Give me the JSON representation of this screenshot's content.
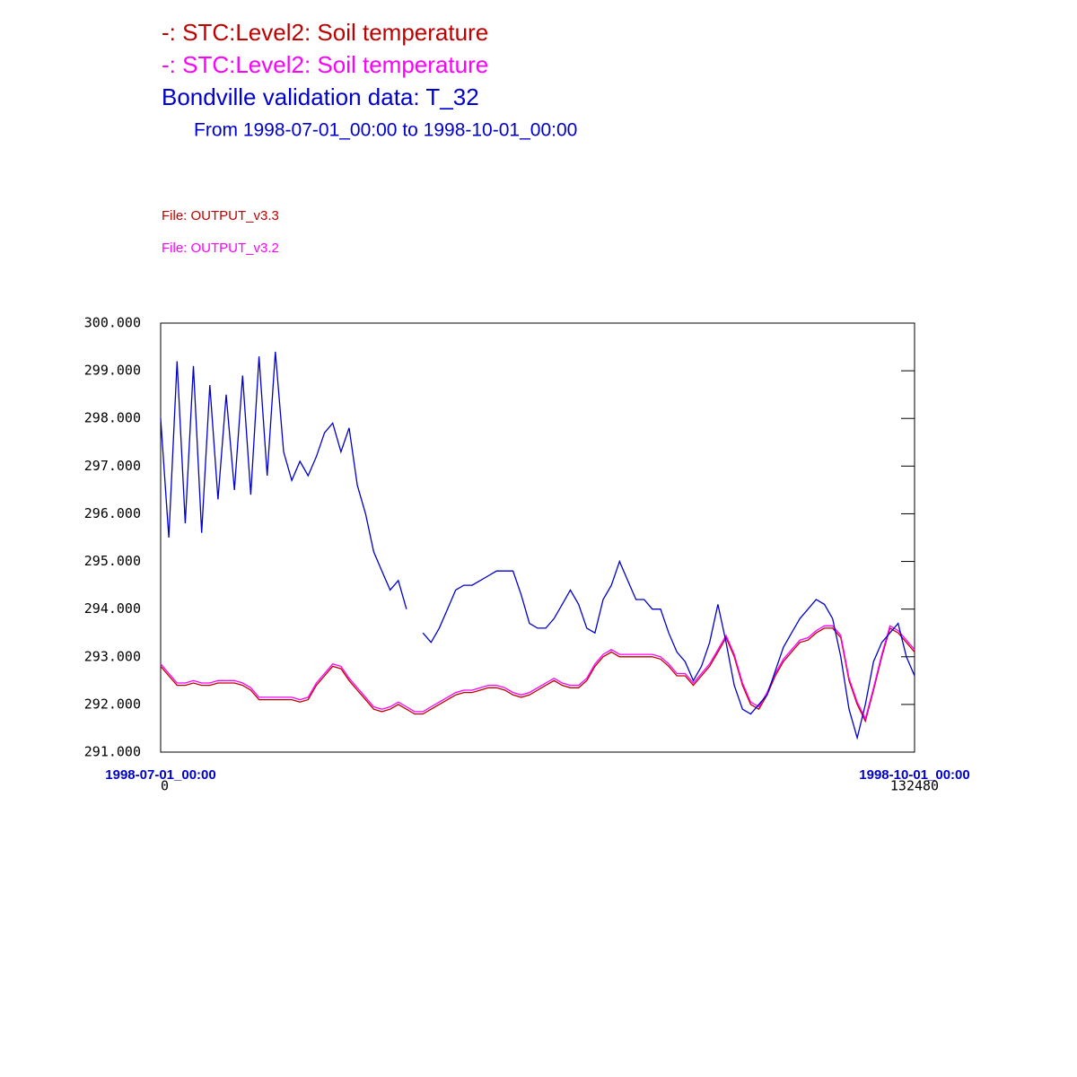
{
  "chart_data": {
    "type": "line",
    "subtitle": "From 1998-07-01_00:00 to 1998-10-01_00:00",
    "x_start_label": "1998-07-01_00:00",
    "x_end_label": "1998-10-01_00:00",
    "xlim": [
      0,
      132480
    ],
    "xticks": [
      0,
      132480
    ],
    "ylim": [
      291,
      300
    ],
    "yticks": [
      {
        "value": 291,
        "label": "291.000"
      },
      {
        "value": 292,
        "label": "292.000"
      },
      {
        "value": 293,
        "label": "293.000"
      },
      {
        "value": 294,
        "label": "294.000"
      },
      {
        "value": 295,
        "label": "295.000"
      },
      {
        "value": 296,
        "label": "296.000"
      },
      {
        "value": 297,
        "label": "297.000"
      },
      {
        "value": 298,
        "label": "298.000"
      },
      {
        "value": 299,
        "label": "299.000"
      },
      {
        "value": 300,
        "label": "300.000"
      }
    ],
    "x": [
      0,
      1440,
      2880,
      4320,
      5760,
      7200,
      8640,
      10080,
      11520,
      12960,
      14400,
      15840,
      17280,
      18720,
      20160,
      21600,
      23040,
      24480,
      25920,
      27360,
      28800,
      30240,
      31680,
      33120,
      34560,
      36000,
      37440,
      38880,
      40320,
      41760,
      43200,
      44640,
      46080,
      47520,
      48960,
      50400,
      51840,
      53280,
      54720,
      56160,
      57600,
      59040,
      60480,
      61920,
      63360,
      64800,
      66240,
      67680,
      69120,
      70560,
      72000,
      73440,
      74880,
      76320,
      77760,
      79200,
      80640,
      82080,
      83520,
      84960,
      86400,
      87840,
      89280,
      90720,
      92160,
      93600,
      95040,
      96480,
      97920,
      99360,
      100800,
      102240,
      103680,
      105120,
      106560,
      108000,
      109440,
      110880,
      112320,
      113760,
      115200,
      116640,
      118080,
      119520,
      120960,
      122400,
      123840,
      125280,
      126720,
      128160,
      129600,
      131040,
      132480
    ],
    "series": [
      {
        "name": "File: OUTPUT_v3.3",
        "label": "-:  STC:Level2: Soil temperature",
        "color": "#c00000",
        "values": [
          292.8,
          292.6,
          292.4,
          292.4,
          292.45,
          292.4,
          292.4,
          292.45,
          292.45,
          292.45,
          292.4,
          292.3,
          292.1,
          292.1,
          292.1,
          292.1,
          292.1,
          292.05,
          292.1,
          292.4,
          292.6,
          292.8,
          292.75,
          292.5,
          292.3,
          292.1,
          291.9,
          291.85,
          291.9,
          292.0,
          291.9,
          291.8,
          291.8,
          291.9,
          292.0,
          292.1,
          292.2,
          292.25,
          292.25,
          292.3,
          292.35,
          292.35,
          292.3,
          292.2,
          292.15,
          292.2,
          292.3,
          292.4,
          292.5,
          292.4,
          292.35,
          292.35,
          292.5,
          292.8,
          293.0,
          293.1,
          293.0,
          293.0,
          293.0,
          293.0,
          293.0,
          292.95,
          292.8,
          292.6,
          292.6,
          292.4,
          292.6,
          292.8,
          293.1,
          293.4,
          293.0,
          292.4,
          292.0,
          291.9,
          292.2,
          292.6,
          292.9,
          293.1,
          293.3,
          293.35,
          293.5,
          293.6,
          293.6,
          293.4,
          292.5,
          292.0,
          291.65,
          292.3,
          293.0,
          293.6,
          293.5,
          293.3,
          293.1
        ]
      },
      {
        "name": "File: OUTPUT_v3.2",
        "label": "-:  STC:Level2: Soil temperature",
        "color": "#ff00ff",
        "values": [
          292.85,
          292.65,
          292.45,
          292.45,
          292.5,
          292.45,
          292.45,
          292.5,
          292.5,
          292.5,
          292.45,
          292.35,
          292.15,
          292.15,
          292.15,
          292.15,
          292.15,
          292.1,
          292.15,
          292.45,
          292.65,
          292.85,
          292.8,
          292.55,
          292.35,
          292.15,
          291.95,
          291.9,
          291.95,
          292.05,
          291.95,
          291.85,
          291.85,
          291.95,
          292.05,
          292.15,
          292.25,
          292.3,
          292.3,
          292.35,
          292.4,
          292.4,
          292.35,
          292.25,
          292.2,
          292.25,
          292.35,
          292.45,
          292.55,
          292.45,
          292.4,
          292.4,
          292.55,
          292.85,
          293.05,
          293.15,
          293.05,
          293.05,
          293.05,
          293.05,
          293.05,
          293.0,
          292.85,
          292.65,
          292.65,
          292.45,
          292.65,
          292.85,
          293.15,
          293.45,
          293.05,
          292.45,
          292.05,
          291.95,
          292.25,
          292.65,
          292.95,
          293.15,
          293.35,
          293.4,
          293.55,
          293.65,
          293.65,
          293.45,
          292.55,
          292.05,
          291.7,
          292.35,
          293.05,
          293.65,
          293.55,
          293.35,
          293.15
        ]
      },
      {
        "name": "Bondville validation data:  T_32",
        "color": "#0000cc",
        "values": [
          298.0,
          295.5,
          299.2,
          295.8,
          299.1,
          295.6,
          298.7,
          296.3,
          298.5,
          296.5,
          298.9,
          296.4,
          299.3,
          296.8,
          299.4,
          297.3,
          296.7,
          297.1,
          296.8,
          297.2,
          297.7,
          297.9,
          297.3,
          297.8,
          296.6,
          296.0,
          295.2,
          294.8,
          294.4,
          294.6,
          294.0,
          null,
          293.5,
          293.3,
          293.6,
          294.0,
          294.4,
          294.5,
          294.5,
          294.6,
          294.7,
          294.8,
          294.8,
          294.8,
          294.3,
          293.7,
          293.6,
          293.6,
          293.8,
          294.1,
          294.4,
          294.1,
          293.6,
          293.5,
          294.2,
          294.5,
          295.0,
          294.6,
          294.2,
          294.2,
          294.0,
          294.0,
          293.5,
          293.1,
          292.9,
          292.5,
          292.8,
          293.3,
          294.1,
          293.3,
          292.4,
          291.9,
          291.8,
          292.0,
          292.2,
          292.7,
          293.2,
          293.5,
          293.8,
          294.0,
          294.2,
          294.1,
          293.8,
          293.0,
          291.9,
          291.3,
          292.0,
          292.9,
          293.3,
          293.5,
          293.7,
          293.0,
          292.6
        ]
      }
    ]
  }
}
